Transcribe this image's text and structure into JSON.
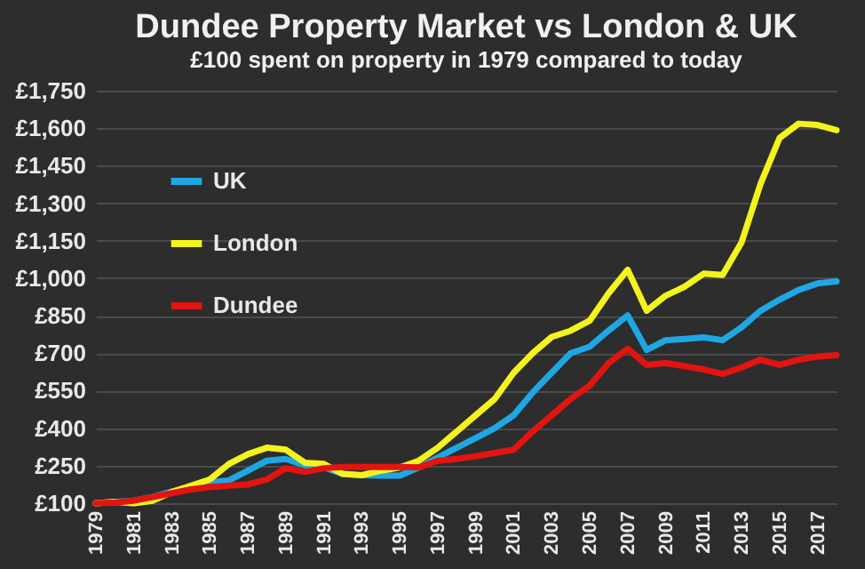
{
  "chart_data": {
    "type": "line",
    "title": "Dundee Property Market vs London & UK",
    "subtitle": "£100 spent on property in 1979 compared to today",
    "x": [
      1979,
      1980,
      1981,
      1982,
      1983,
      1984,
      1985,
      1986,
      1987,
      1988,
      1989,
      1990,
      1991,
      1992,
      1993,
      1994,
      1995,
      1996,
      1997,
      1998,
      1999,
      2000,
      2001,
      2002,
      2003,
      2004,
      2005,
      2006,
      2007,
      2008,
      2009,
      2010,
      2011,
      2012,
      2013,
      2014,
      2015,
      2016,
      2017,
      2018
    ],
    "series": [
      {
        "name": "UK",
        "color": "#1ea7e4",
        "values": [
          100,
          105,
          110,
          125,
          147,
          165,
          183,
          191,
          230,
          270,
          277,
          251,
          243,
          217,
          212,
          210,
          210,
          243,
          283,
          322,
          361,
          400,
          452,
          543,
          622,
          700,
          726,
          791,
          851,
          713,
          752,
          757,
          763,
          752,
          804,
          870,
          914,
          953,
          979,
          987
        ]
      },
      {
        "name": "London",
        "color": "#f4f41c",
        "values": [
          100,
          105,
          100,
          110,
          145,
          170,
          195,
          257,
          296,
          322,
          314,
          262,
          257,
          217,
          212,
          230,
          243,
          270,
          322,
          387,
          452,
          517,
          622,
          700,
          765,
          790,
          830,
          940,
          1034,
          870,
          930,
          966,
          1018,
          1013,
          1144,
          1378,
          1561,
          1618,
          1613,
          1592
        ]
      },
      {
        "name": "Dundee",
        "color": "#e3140f",
        "values": [
          100,
          103,
          110,
          125,
          140,
          155,
          165,
          170,
          175,
          195,
          240,
          225,
          240,
          245,
          245,
          245,
          245,
          243,
          270,
          277,
          288,
          301,
          314,
          387,
          452,
          517,
          570,
          661,
          718,
          653,
          661,
          648,
          635,
          617,
          643,
          674,
          653,
          674,
          687,
          692
        ]
      }
    ],
    "xlim": [
      1979,
      2018
    ],
    "xticks": [
      1979,
      1981,
      1983,
      1985,
      1987,
      1989,
      1991,
      1993,
      1995,
      1997,
      1999,
      2001,
      2003,
      2005,
      2007,
      2009,
      2011,
      2013,
      2015,
      2017
    ],
    "ylim": [
      100,
      1750
    ],
    "yticks": [
      {
        "value": 100,
        "label": "£100"
      },
      {
        "value": 250,
        "label": "£250"
      },
      {
        "value": 400,
        "label": "£400"
      },
      {
        "value": 550,
        "label": "£550"
      },
      {
        "value": 700,
        "label": "£700"
      },
      {
        "value": 850,
        "label": "£850"
      },
      {
        "value": 1000,
        "label": "£1,000"
      },
      {
        "value": 1150,
        "label": "£1,150"
      },
      {
        "value": 1300,
        "label": "£1,300"
      },
      {
        "value": 1450,
        "label": "£1,450"
      },
      {
        "value": 1600,
        "label": "£1,600"
      },
      {
        "value": 1750,
        "label": "£1,750"
      }
    ],
    "grid": "y",
    "legend": "top left",
    "marker": "none",
    "line_style": "solid"
  }
}
